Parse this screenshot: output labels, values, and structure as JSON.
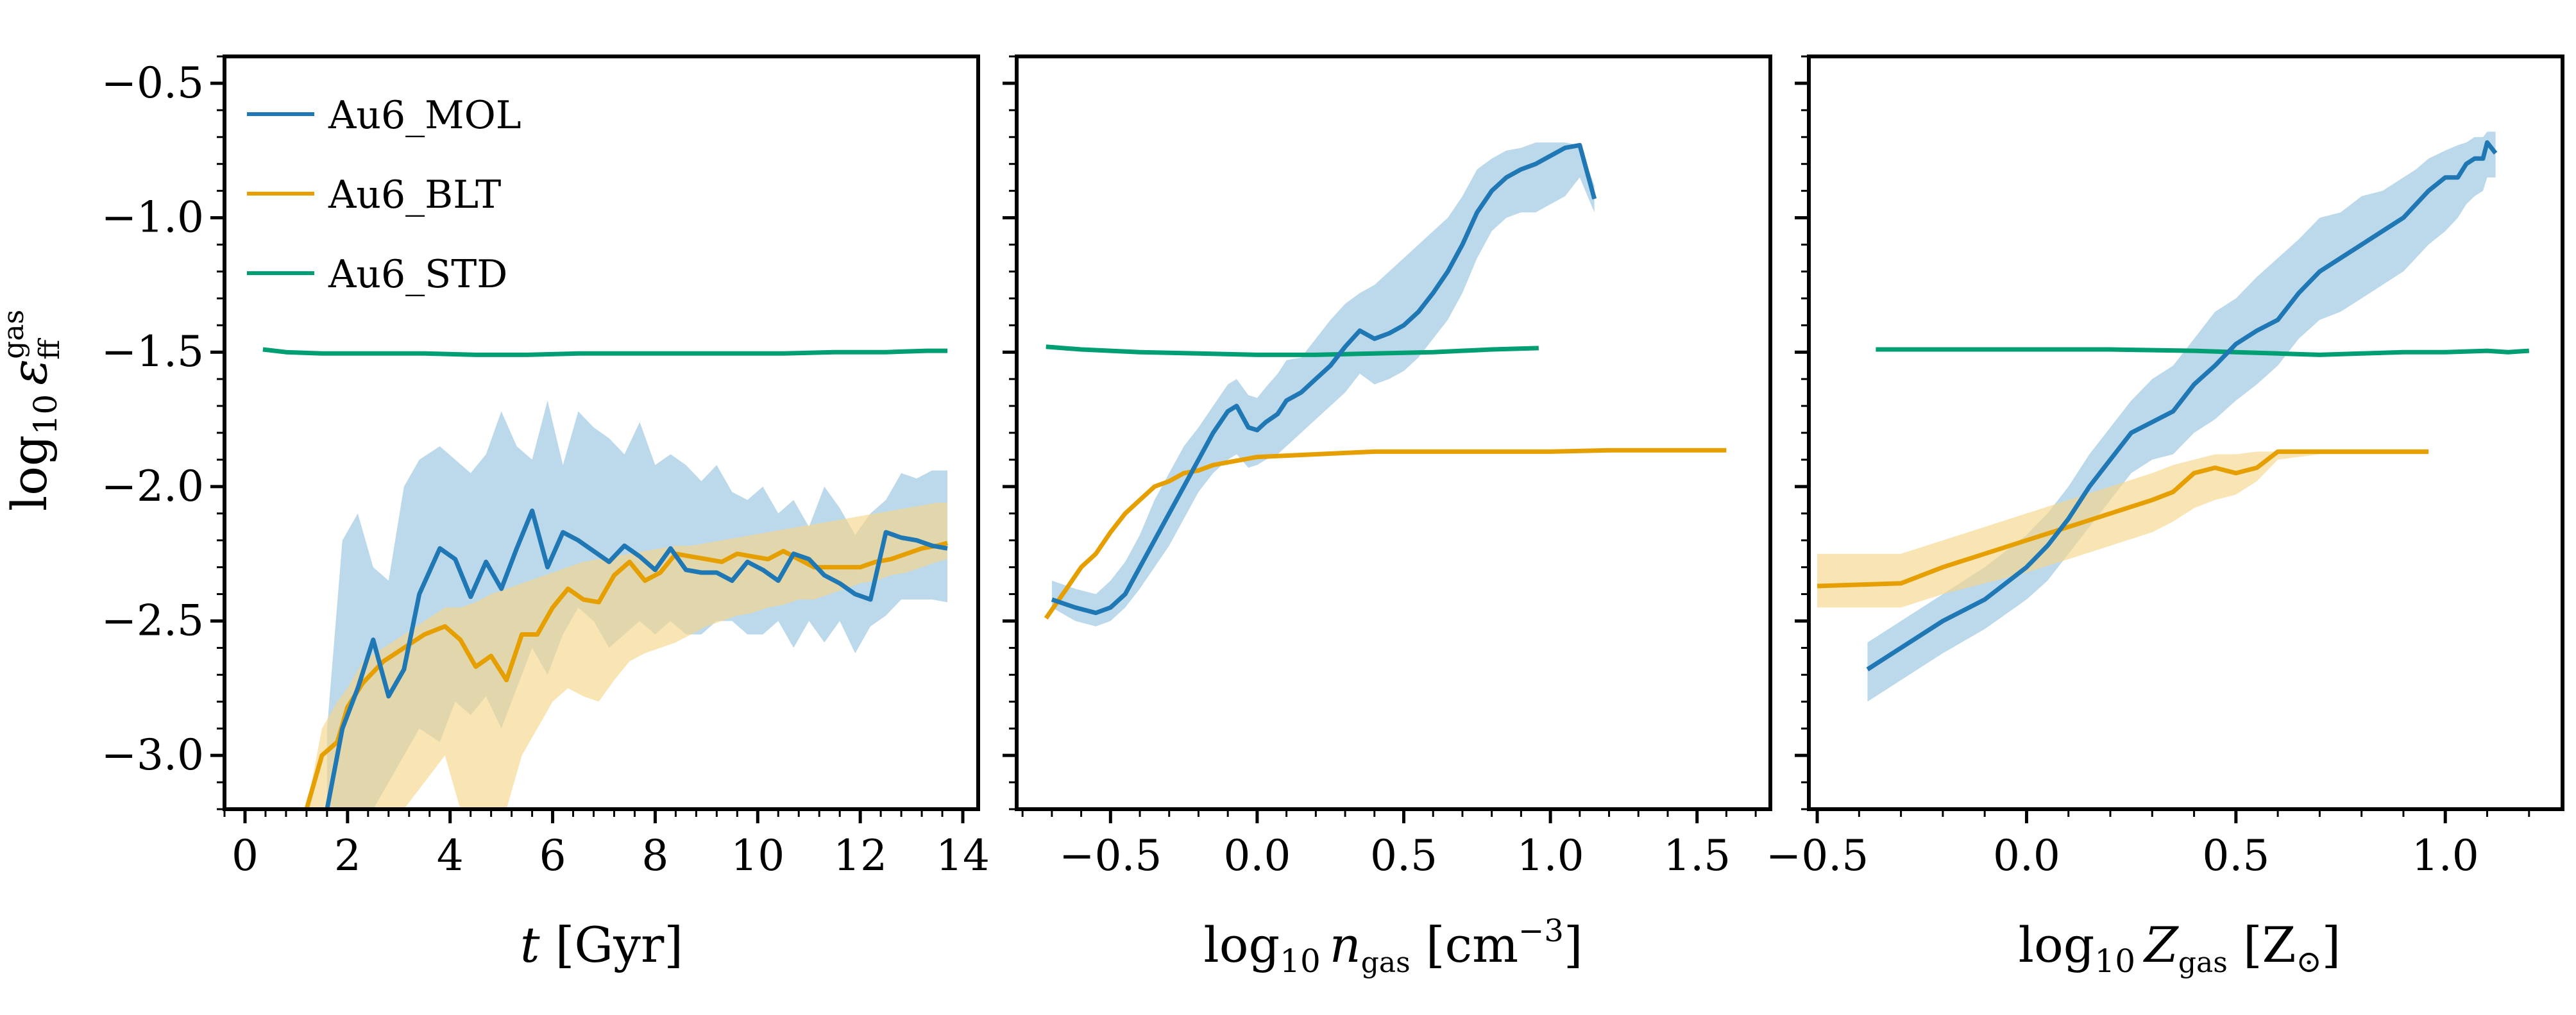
{
  "colors": {
    "mol": "#1f77b4",
    "blt": "#e69f00",
    "std": "#009e73",
    "mol_band": "#a6cce6",
    "blt_band": "#f6d58b"
  },
  "chart_data": [
    {
      "type": "line",
      "panel": "left",
      "xlabel": "t [Gyr]",
      "ylabel": "log10 ε_ff^gas",
      "ylabel_parts": {
        "main": "log",
        "sub": "10",
        "sym": "ε",
        "sup": "gas",
        "sub2": "ff"
      },
      "xlabel_parts": {
        "main": "t",
        "rest": " [Gyr]"
      },
      "xlim": [
        -0.4,
        14.3
      ],
      "ylim": [
        -3.2,
        -0.4
      ],
      "xticks": [
        0,
        2,
        4,
        6,
        8,
        10,
        12,
        14
      ],
      "xtick_labels": [
        "0",
        "2",
        "4",
        "6",
        "8",
        "10",
        "12",
        "14"
      ],
      "yticks": [
        -3.0,
        -2.5,
        -2.0,
        -1.5,
        -1.0,
        -0.5
      ],
      "ytick_labels": [
        "−3.0",
        "−2.5",
        "−2.0",
        "−1.5",
        "−1.0",
        "−0.5"
      ],
      "legend": [
        "Au6_MOL",
        "Au6_BLT",
        "Au6_STD"
      ],
      "series": [
        {
          "name": "Au6_MOL",
          "x": [
            1.6,
            1.9,
            2.2,
            2.5,
            2.8,
            3.1,
            3.4,
            3.8,
            4.1,
            4.4,
            4.7,
            5.0,
            5.3,
            5.6,
            5.9,
            6.2,
            6.5,
            6.8,
            7.1,
            7.4,
            7.7,
            8.0,
            8.3,
            8.6,
            8.9,
            9.2,
            9.5,
            9.8,
            10.1,
            10.4,
            10.7,
            11.0,
            11.3,
            11.6,
            11.9,
            12.2,
            12.5,
            12.8,
            13.1,
            13.4,
            13.7
          ],
          "y": [
            -3.2,
            -2.9,
            -2.75,
            -2.57,
            -2.78,
            -2.68,
            -2.4,
            -2.23,
            -2.27,
            -2.41,
            -2.28,
            -2.38,
            -2.23,
            -2.09,
            -2.3,
            -2.17,
            -2.2,
            -2.24,
            -2.28,
            -2.22,
            -2.26,
            -2.31,
            -2.23,
            -2.31,
            -2.32,
            -2.32,
            -2.35,
            -2.28,
            -2.31,
            -2.35,
            -2.25,
            -2.27,
            -2.33,
            -2.36,
            -2.4,
            -2.42,
            -2.17,
            -2.19,
            -2.2,
            -2.22,
            -2.23
          ],
          "band_upper": [
            -2.9,
            -2.2,
            -2.1,
            -2.3,
            -2.35,
            -2.0,
            -1.9,
            -1.85,
            -1.9,
            -1.95,
            -1.88,
            -1.72,
            -1.85,
            -1.9,
            -1.68,
            -1.92,
            -1.72,
            -1.78,
            -1.82,
            -1.88,
            -1.76,
            -1.92,
            -1.88,
            -1.92,
            -1.98,
            -1.92,
            -2.02,
            -2.05,
            -2.0,
            -2.1,
            -2.05,
            -2.15,
            -2.0,
            -2.08,
            -2.18,
            -2.1,
            -2.05,
            -1.95,
            -1.97,
            -1.94,
            -1.94
          ],
          "band_lower": [
            -3.2,
            -3.2,
            -3.2,
            -3.2,
            -3.1,
            -3.0,
            -2.9,
            -2.95,
            -2.8,
            -2.85,
            -2.78,
            -2.9,
            -2.75,
            -2.6,
            -2.7,
            -2.55,
            -2.45,
            -2.5,
            -2.6,
            -2.55,
            -2.5,
            -2.55,
            -2.5,
            -2.55,
            -2.55,
            -2.5,
            -2.5,
            -2.55,
            -2.55,
            -2.5,
            -2.6,
            -2.5,
            -2.58,
            -2.5,
            -2.62,
            -2.52,
            -2.48,
            -2.42,
            -2.42,
            -2.42,
            -2.43
          ]
        },
        {
          "name": "Au6_BLT",
          "x": [
            1.2,
            1.5,
            1.8,
            2.0,
            2.3,
            2.7,
            3.1,
            3.5,
            3.9,
            4.2,
            4.5,
            4.8,
            5.1,
            5.4,
            5.7,
            6.0,
            6.3,
            6.6,
            6.9,
            7.2,
            7.5,
            7.8,
            8.1,
            8.4,
            8.7,
            9.0,
            9.3,
            9.6,
            9.9,
            10.2,
            10.5,
            10.8,
            11.1,
            11.4,
            11.7,
            12.0,
            12.3,
            12.6,
            12.9,
            13.2,
            13.5,
            13.7
          ],
          "y": [
            -3.2,
            -3.0,
            -2.95,
            -2.82,
            -2.73,
            -2.65,
            -2.6,
            -2.55,
            -2.52,
            -2.57,
            -2.67,
            -2.63,
            -2.72,
            -2.55,
            -2.55,
            -2.45,
            -2.38,
            -2.42,
            -2.43,
            -2.33,
            -2.28,
            -2.35,
            -2.32,
            -2.25,
            -2.26,
            -2.27,
            -2.28,
            -2.25,
            -2.26,
            -2.27,
            -2.24,
            -2.27,
            -2.3,
            -2.3,
            -2.3,
            -2.3,
            -2.28,
            -2.27,
            -2.25,
            -2.23,
            -2.22,
            -2.21
          ],
          "band_upper": [
            -3.2,
            -2.9,
            -2.8,
            -2.75,
            -2.65,
            -2.6,
            -2.55,
            -2.5,
            -2.45,
            -2.45,
            -2.43,
            -2.4,
            -2.38,
            -2.36,
            -2.34,
            -2.32,
            -2.3,
            -2.28,
            -2.27,
            -2.26,
            -2.25,
            -2.24,
            -2.23,
            -2.22,
            -2.22,
            -2.21,
            -2.2,
            -2.19,
            -2.18,
            -2.17,
            -2.16,
            -2.15,
            -2.14,
            -2.13,
            -2.12,
            -2.11,
            -2.1,
            -2.09,
            -2.08,
            -2.07,
            -2.06,
            -2.06
          ],
          "band_lower": [
            -3.2,
            -3.2,
            -3.2,
            -3.2,
            -3.2,
            -3.2,
            -3.2,
            -3.1,
            -3.0,
            -3.2,
            -3.2,
            -3.2,
            -3.2,
            -3.0,
            -2.9,
            -2.8,
            -2.75,
            -2.78,
            -2.8,
            -2.72,
            -2.65,
            -2.62,
            -2.6,
            -2.58,
            -2.55,
            -2.52,
            -2.5,
            -2.48,
            -2.47,
            -2.45,
            -2.44,
            -2.42,
            -2.42,
            -2.4,
            -2.38,
            -2.36,
            -2.35,
            -2.33,
            -2.32,
            -2.3,
            -2.28,
            -2.27
          ]
        },
        {
          "name": "Au6_STD",
          "x": [
            0.35,
            0.8,
            1.5,
            2.5,
            3.5,
            4.5,
            5.5,
            6.5,
            7.5,
            8.5,
            9.5,
            10.5,
            11.5,
            12.5,
            13.3,
            13.7
          ],
          "y": [
            -1.49,
            -1.5,
            -1.505,
            -1.505,
            -1.505,
            -1.51,
            -1.51,
            -1.505,
            -1.505,
            -1.505,
            -1.505,
            -1.505,
            -1.5,
            -1.5,
            -1.495,
            -1.495
          ]
        }
      ]
    },
    {
      "type": "line",
      "panel": "middle",
      "xlabel": "log10 n_gas [cm^-3]",
      "xlabel_parts": {
        "main": "log",
        "sub": "10",
        "sym": "n",
        "symsub": "gas",
        "rest": " [cm",
        "sup": "−3",
        "close": "]"
      },
      "xlim": [
        -0.82,
        1.75
      ],
      "ylim": [
        -3.2,
        -0.4
      ],
      "xticks": [
        -0.5,
        0.0,
        0.5,
        1.0,
        1.5
      ],
      "xtick_labels": [
        "−0.5",
        "0.0",
        "0.5",
        "1.0",
        "1.5"
      ],
      "series": [
        {
          "name": "Au6_MOL",
          "x": [
            -0.7,
            -0.62,
            -0.55,
            -0.5,
            -0.45,
            -0.4,
            -0.35,
            -0.3,
            -0.25,
            -0.2,
            -0.15,
            -0.1,
            -0.07,
            -0.03,
            0.0,
            0.03,
            0.07,
            0.1,
            0.15,
            0.2,
            0.25,
            0.3,
            0.35,
            0.4,
            0.45,
            0.5,
            0.55,
            0.6,
            0.65,
            0.7,
            0.75,
            0.8,
            0.85,
            0.9,
            0.95,
            1.0,
            1.05,
            1.1,
            1.15
          ],
          "y": [
            -2.42,
            -2.45,
            -2.47,
            -2.45,
            -2.4,
            -2.3,
            -2.2,
            -2.1,
            -2.0,
            -1.9,
            -1.8,
            -1.72,
            -1.7,
            -1.78,
            -1.79,
            -1.76,
            -1.73,
            -1.68,
            -1.65,
            -1.6,
            -1.55,
            -1.48,
            -1.42,
            -1.45,
            -1.43,
            -1.4,
            -1.35,
            -1.28,
            -1.2,
            -1.1,
            -0.98,
            -0.9,
            -0.85,
            -0.82,
            -0.8,
            -0.77,
            -0.74,
            -0.73,
            -0.93
          ],
          "band_upper": [
            -2.35,
            -2.38,
            -2.4,
            -2.35,
            -2.28,
            -2.18,
            -2.05,
            -1.95,
            -1.85,
            -1.78,
            -1.7,
            -1.62,
            -1.6,
            -1.66,
            -1.67,
            -1.63,
            -1.58,
            -1.53,
            -1.52,
            -1.45,
            -1.38,
            -1.32,
            -1.28,
            -1.25,
            -1.2,
            -1.15,
            -1.1,
            -1.05,
            -1.0,
            -0.92,
            -0.82,
            -0.78,
            -0.75,
            -0.74,
            -0.72,
            -0.72,
            -0.72,
            -0.73,
            -0.88
          ],
          "band_lower": [
            -2.45,
            -2.5,
            -2.52,
            -2.5,
            -2.45,
            -2.38,
            -2.3,
            -2.22,
            -2.12,
            -2.02,
            -1.95,
            -1.9,
            -1.88,
            -1.93,
            -1.92,
            -1.9,
            -1.88,
            -1.85,
            -1.8,
            -1.75,
            -1.7,
            -1.65,
            -1.58,
            -1.62,
            -1.6,
            -1.57,
            -1.52,
            -1.45,
            -1.38,
            -1.28,
            -1.15,
            -1.05,
            -1.0,
            -0.98,
            -0.98,
            -0.95,
            -0.92,
            -0.85,
            -0.98
          ]
        },
        {
          "name": "Au6_BLT",
          "x": [
            -0.72,
            -0.65,
            -0.6,
            -0.55,
            -0.5,
            -0.45,
            -0.4,
            -0.35,
            -0.3,
            -0.25,
            -0.2,
            -0.15,
            -0.1,
            -0.05,
            0.0,
            0.1,
            0.2,
            0.3,
            0.4,
            0.5,
            0.6,
            0.8,
            1.0,
            1.2,
            1.4,
            1.6
          ],
          "y": [
            -2.49,
            -2.38,
            -2.3,
            -2.25,
            -2.17,
            -2.1,
            -2.05,
            -2.0,
            -1.98,
            -1.95,
            -1.94,
            -1.92,
            -1.91,
            -1.9,
            -1.89,
            -1.885,
            -1.88,
            -1.875,
            -1.87,
            -1.87,
            -1.87,
            -1.87,
            -1.87,
            -1.865,
            -1.865,
            -1.865
          ]
        },
        {
          "name": "Au6_STD",
          "x": [
            -0.72,
            -0.6,
            -0.4,
            -0.2,
            0.0,
            0.2,
            0.4,
            0.6,
            0.8,
            0.96
          ],
          "y": [
            -1.48,
            -1.49,
            -1.5,
            -1.505,
            -1.51,
            -1.51,
            -1.505,
            -1.5,
            -1.49,
            -1.485
          ]
        }
      ]
    },
    {
      "type": "line",
      "panel": "right",
      "xlabel": "log10 Z_gas [Z_⊙]",
      "xlabel_parts": {
        "main": "log",
        "sub": "10",
        "sym": "Z",
        "symsub": "gas",
        "rest": " [Z",
        "sub2": "⊙",
        "close": "]"
      },
      "xlim": [
        -0.52,
        1.28
      ],
      "ylim": [
        -3.2,
        -0.4
      ],
      "xticks": [
        -0.5,
        0.0,
        0.5,
        1.0
      ],
      "xtick_labels": [
        "−0.5",
        "0.0",
        "0.5",
        "1.0"
      ],
      "series": [
        {
          "name": "Au6_MOL",
          "x": [
            -0.38,
            -0.3,
            -0.2,
            -0.1,
            0.0,
            0.05,
            0.1,
            0.15,
            0.2,
            0.25,
            0.3,
            0.35,
            0.4,
            0.45,
            0.5,
            0.55,
            0.6,
            0.65,
            0.7,
            0.75,
            0.8,
            0.85,
            0.9,
            0.93,
            0.96,
            1.0,
            1.03,
            1.05,
            1.07,
            1.09,
            1.1,
            1.12
          ],
          "y": [
            -2.68,
            -2.6,
            -2.5,
            -2.42,
            -2.3,
            -2.22,
            -2.12,
            -2.0,
            -1.9,
            -1.8,
            -1.76,
            -1.72,
            -1.62,
            -1.55,
            -1.47,
            -1.42,
            -1.38,
            -1.28,
            -1.2,
            -1.15,
            -1.1,
            -1.05,
            -1.0,
            -0.95,
            -0.9,
            -0.85,
            -0.85,
            -0.8,
            -0.78,
            -0.78,
            -0.72,
            -0.76
          ],
          "band_upper": [
            -2.58,
            -2.5,
            -2.4,
            -2.3,
            -2.18,
            -2.1,
            -2.0,
            -1.88,
            -1.78,
            -1.68,
            -1.6,
            -1.55,
            -1.45,
            -1.35,
            -1.3,
            -1.22,
            -1.15,
            -1.08,
            -1.0,
            -0.98,
            -0.92,
            -0.9,
            -0.85,
            -0.82,
            -0.78,
            -0.75,
            -0.73,
            -0.72,
            -0.7,
            -0.7,
            -0.68,
            -0.68
          ],
          "band_lower": [
            -2.8,
            -2.72,
            -2.62,
            -2.53,
            -2.42,
            -2.35,
            -2.25,
            -2.15,
            -2.05,
            -1.95,
            -1.9,
            -1.88,
            -1.8,
            -1.75,
            -1.68,
            -1.62,
            -1.55,
            -1.45,
            -1.38,
            -1.35,
            -1.3,
            -1.25,
            -1.2,
            -1.15,
            -1.1,
            -1.05,
            -1.0,
            -0.95,
            -0.92,
            -0.9,
            -0.85,
            -0.85
          ]
        },
        {
          "name": "Au6_BLT",
          "x": [
            -0.5,
            -0.4,
            -0.3,
            -0.2,
            -0.1,
            0.0,
            0.1,
            0.2,
            0.3,
            0.35,
            0.4,
            0.45,
            0.5,
            0.55,
            0.6,
            0.7,
            0.8,
            0.96
          ],
          "y": [
            -2.37,
            -2.365,
            -2.36,
            -2.3,
            -2.25,
            -2.2,
            -2.15,
            -2.1,
            -2.05,
            -2.02,
            -1.95,
            -1.93,
            -1.95,
            -1.93,
            -1.87,
            -1.87,
            -1.87,
            -1.87
          ],
          "band_upper": [
            -2.25,
            -2.25,
            -2.25,
            -2.2,
            -2.15,
            -2.1,
            -2.05,
            -2.0,
            -1.95,
            -1.92,
            -1.9,
            -1.88,
            -1.88,
            -1.87,
            -1.87,
            -1.87,
            -1.87,
            -1.87
          ],
          "band_lower": [
            -2.45,
            -2.45,
            -2.45,
            -2.4,
            -2.36,
            -2.32,
            -2.27,
            -2.22,
            -2.17,
            -2.13,
            -2.08,
            -2.05,
            -2.03,
            -1.98,
            -1.9,
            -1.88,
            -1.88,
            -1.88
          ]
        },
        {
          "name": "Au6_STD",
          "x": [
            -0.36,
            -0.2,
            0.0,
            0.2,
            0.4,
            0.5,
            0.6,
            0.7,
            0.8,
            0.9,
            1.0,
            1.1,
            1.15,
            1.2
          ],
          "y": [
            -1.49,
            -1.49,
            -1.49,
            -1.49,
            -1.495,
            -1.5,
            -1.505,
            -1.51,
            -1.505,
            -1.5,
            -1.5,
            -1.495,
            -1.5,
            -1.495
          ]
        }
      ]
    }
  ]
}
